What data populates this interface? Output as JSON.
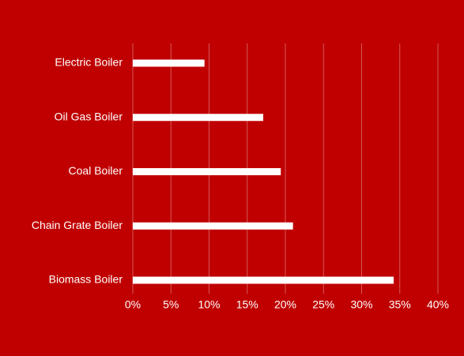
{
  "chart_data": {
    "type": "hbar",
    "categories": [
      "Electric Boiler",
      "Oil Gas Boiler",
      "Coal Boiler",
      "Chain Grate Boiler",
      "Biomass Boiler"
    ],
    "values": [
      9.4,
      17.1,
      19.4,
      21.0,
      34.2
    ],
    "color": "#ffffff",
    "xlim": [
      0,
      40
    ],
    "xticks": [
      {
        "value": 0,
        "label": "0%"
      },
      {
        "value": 5,
        "label": "5%"
      },
      {
        "value": 10,
        "label": "10%"
      },
      {
        "value": 15,
        "label": "15%"
      },
      {
        "value": 20,
        "label": "20%"
      },
      {
        "value": 25,
        "label": "25%"
      },
      {
        "value": 30,
        "label": "30%"
      },
      {
        "value": 35,
        "label": "35%"
      },
      {
        "value": 40,
        "label": "40%"
      }
    ],
    "grid": true
  }
}
